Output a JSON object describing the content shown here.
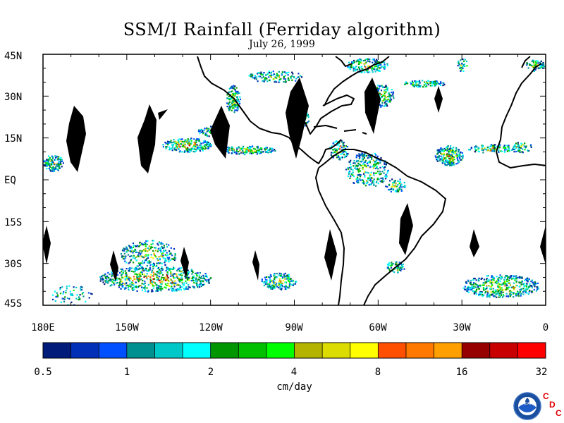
{
  "title": "SSM/I Rainfall (Ferriday algorithm)",
  "subtitle": "July 26, 1999",
  "lat_labels": [
    "45N",
    "30N",
    "15N",
    "EQ",
    "15S",
    "30S",
    "45S"
  ],
  "lon_labels": [
    "180E",
    "150W",
    "120W",
    "90W",
    "60W",
    "30W",
    "0"
  ],
  "colorbar": {
    "tick_labels": [
      "0.5",
      "1",
      "2",
      "4",
      "8",
      "16",
      "32"
    ],
    "units": "cm/day",
    "colors": [
      "#001b7a",
      "#0030b8",
      "#0050ff",
      "#009090",
      "#00c8c8",
      "#00ffff",
      "#009600",
      "#00c000",
      "#00ff00",
      "#b4b400",
      "#dcdc00",
      "#ffff00",
      "#ff5000",
      "#ff7800",
      "#ffa000",
      "#960000",
      "#c80000",
      "#ff0000"
    ]
  },
  "logo": {
    "text": "NOAA",
    "cdc": [
      "C",
      "D",
      "C"
    ]
  },
  "map": {
    "lon_range": [
      -180,
      0
    ],
    "lat_range": [
      -45,
      45
    ],
    "background": "#ffffff",
    "coastline_color": "#000000",
    "missing_data_color": "#000000"
  }
}
